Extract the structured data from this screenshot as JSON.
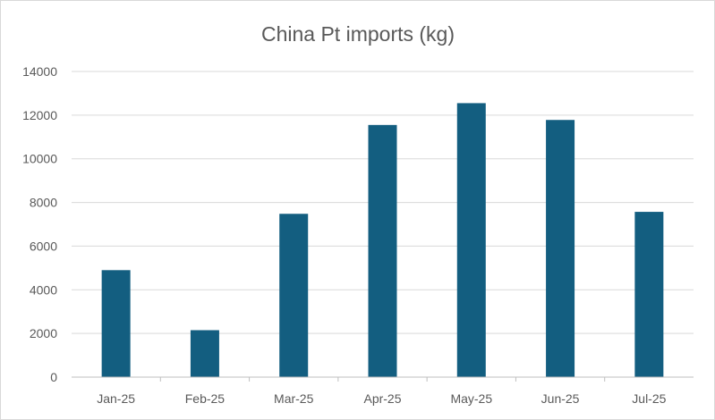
{
  "chart_data": {
    "type": "bar",
    "title": "China Pt imports (kg)",
    "categories": [
      "Jan-25",
      "Feb-25",
      "Mar-25",
      "Apr-25",
      "May-25",
      "Jun-25",
      "Jul-25"
    ],
    "values": [
      4900,
      2150,
      7480,
      11550,
      12550,
      11780,
      7570
    ],
    "ylim": [
      0,
      14000
    ],
    "yticks": [
      "0",
      "2000",
      "4000",
      "6000",
      "8000",
      "10000",
      "12000",
      "14000"
    ],
    "grid": true,
    "legend": "none",
    "bar_color": "#135e80"
  }
}
